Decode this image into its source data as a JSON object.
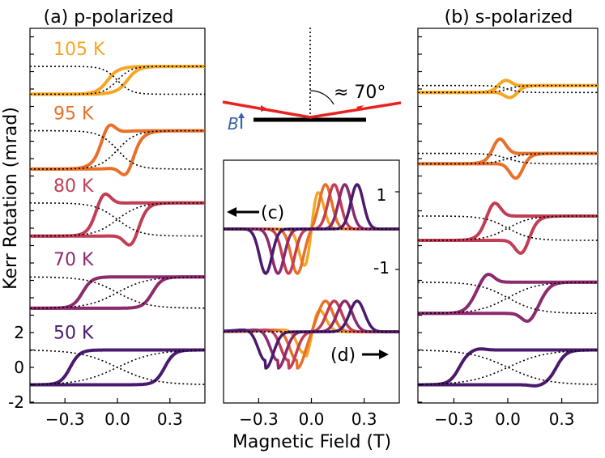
{
  "figure": {
    "ylabel": "Kerr Rotation (mrad)",
    "xlabel": "Magnetic Field (T)",
    "angle_label": "≈ 70°",
    "b_label": "B"
  },
  "colors": {
    "105": "#f5a623",
    "95": "#e8702a",
    "80": "#c23e55",
    "70": "#8c2a6e",
    "50": "#4a1a6e",
    "beam": "#e8231f",
    "b_arrow": "#3a62a8"
  },
  "chart_data": [
    {
      "type": "line",
      "title": "(a) p-polarized",
      "xlim": [
        -0.5,
        0.5
      ],
      "ylim": [
        -2,
        20
      ],
      "x_ticks": [
        -0.3,
        0.0,
        0.3
      ],
      "x_tick_labels": [
        "−0.3",
        "0.0",
        "0.3"
      ],
      "y_ticks": [
        -2,
        0,
        2
      ],
      "y_tick_labels": [
        "-2",
        "0",
        "2"
      ],
      "series": [
        {
          "name": "105 K",
          "label": "105 K",
          "offset": 16.5,
          "color_key": "105",
          "coercive": 0.05,
          "saturation": 0.8,
          "bump": 0.1
        },
        {
          "name": "95 K",
          "label": "95 K",
          "offset": 12.5,
          "color_key": "95",
          "coercive": 0.09,
          "saturation": 1.1,
          "bump": 0.9
        },
        {
          "name": "80 K",
          "label": "80 K",
          "offset": 8.5,
          "color_key": "80",
          "coercive": 0.13,
          "saturation": 0.95,
          "bump": 0.8
        },
        {
          "name": "70 K",
          "label": "70 K",
          "offset": 4.3,
          "color_key": "70",
          "coercive": 0.2,
          "saturation": 0.9,
          "bump": 0.0
        },
        {
          "name": "50 K",
          "label": "50 K",
          "offset": 0.0,
          "color_key": "50",
          "coercive": 0.27,
          "saturation": 1.0,
          "bump": 0.0
        }
      ]
    },
    {
      "type": "line",
      "title": "inset (c)/(d)",
      "xlim": [
        -0.5,
        0.5
      ],
      "x_ticks": [
        -0.3,
        0.0,
        0.3
      ],
      "x_tick_labels": [
        "−0.3",
        "0.0",
        "0.3"
      ],
      "y_tick_labels": [
        "1",
        "-1"
      ],
      "annotations": [
        "←(c)",
        "(d)→"
      ],
      "label_c": "(c)",
      "label_d": "(d)",
      "series": [
        {
          "name": "105 K",
          "color_key": "105",
          "peak": 0.03
        },
        {
          "name": "95 K",
          "color_key": "95",
          "peak": 0.08
        },
        {
          "name": "80 K",
          "color_key": "80",
          "peak": 0.13
        },
        {
          "name": "70 K",
          "color_key": "70",
          "peak": 0.19
        },
        {
          "name": "50 K",
          "color_key": "50",
          "peak": 0.26
        }
      ]
    },
    {
      "type": "line",
      "title": "(b) s-polarized",
      "xlim": [
        -0.5,
        0.5
      ],
      "x_ticks": [
        -0.3,
        0.0,
        0.3
      ],
      "x_tick_labels": [
        "−0.3",
        "0.0",
        "0.3"
      ],
      "series": [
        {
          "name": "105 K",
          "offset": 16.0,
          "color_key": "105",
          "coercive": 0.03,
          "saturation": 0.2,
          "bump": 0.5
        },
        {
          "name": "95 K",
          "offset": 12.0,
          "color_key": "95",
          "coercive": 0.08,
          "saturation": 0.3,
          "bump": 1.1
        },
        {
          "name": "80 K",
          "offset": 8.0,
          "color_key": "80",
          "coercive": 0.13,
          "saturation": 0.7,
          "bump": 1.0
        },
        {
          "name": "70 K",
          "offset": 4.0,
          "color_key": "70",
          "coercive": 0.19,
          "saturation": 0.9,
          "bump": 0.6
        },
        {
          "name": "50 K",
          "offset": 0.0,
          "color_key": "50",
          "coercive": 0.27,
          "saturation": 1.0,
          "bump": 0.1
        }
      ]
    }
  ]
}
